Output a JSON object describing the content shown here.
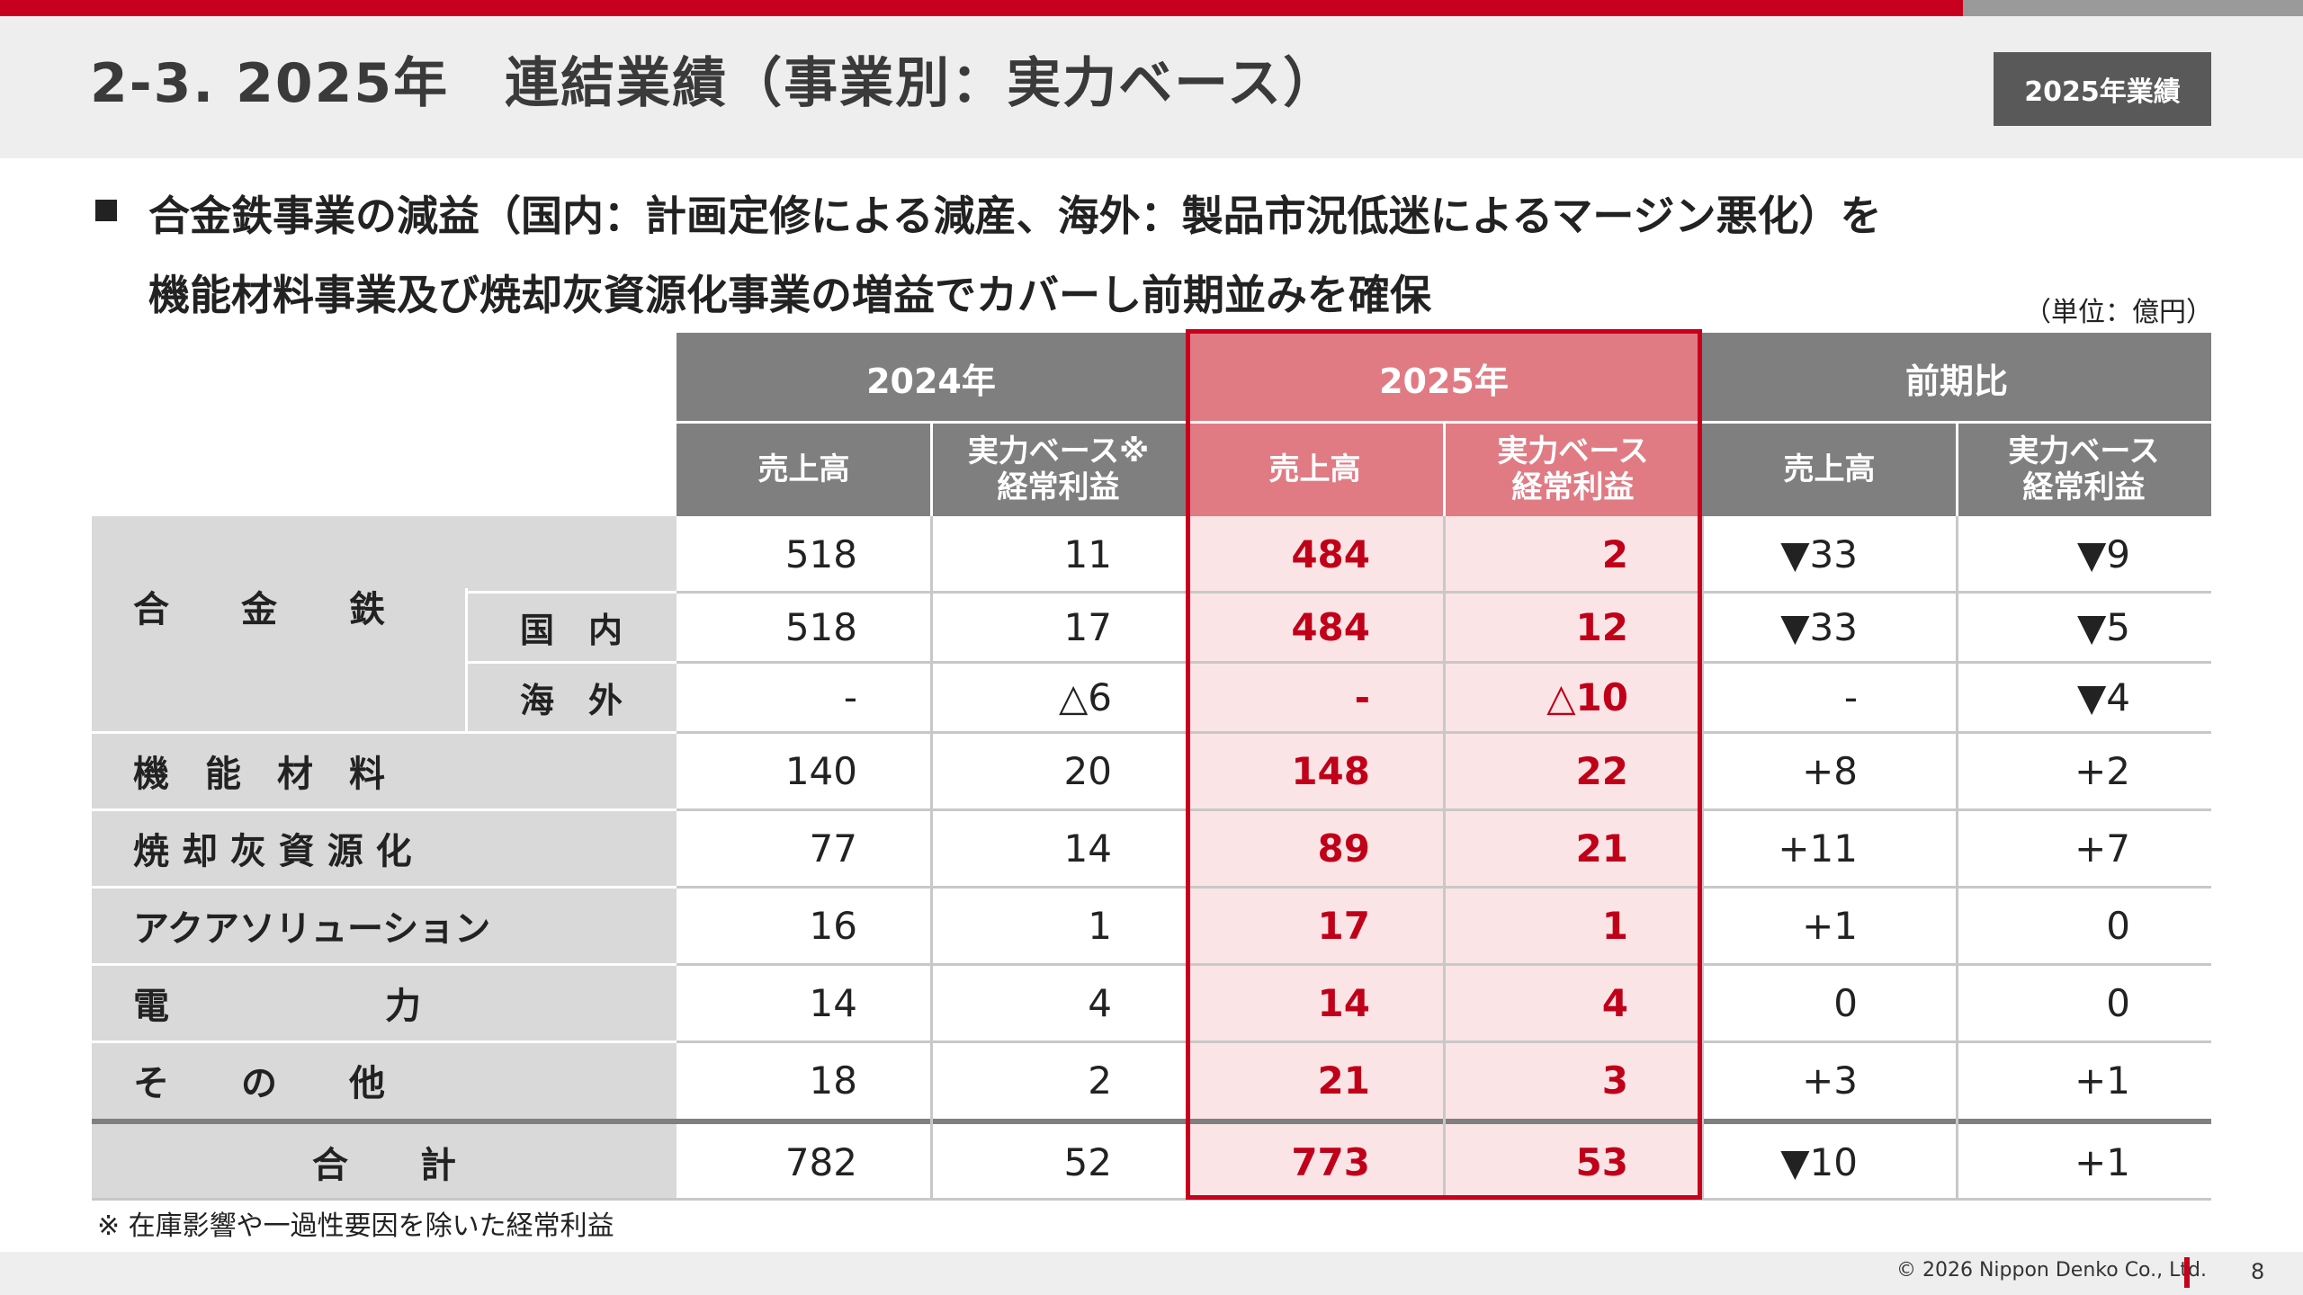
{
  "header": {
    "title": "2-3. 2025年　連結業績（事業別：実力ベース）",
    "badge": "2025年業績"
  },
  "headline": {
    "line1": "合金鉄事業の減益（国内：計画定修による減産、海外：製品市況低迷によるマージン悪化）を",
    "line2": "機能材料事業及び焼却灰資源化事業の増益でカバーし前期並みを確保"
  },
  "unit": "（単位：億円）",
  "table": {
    "groups": [
      "2024年",
      "2025年",
      "前期比"
    ],
    "subheaders": {
      "sales": "売上高",
      "profit_2024_line1": "実力ベース※",
      "profit_line1": "実力ベース",
      "profit_line2": "経常利益"
    },
    "rows": [
      {
        "label": "",
        "cells": [
          "518",
          "11",
          "484",
          "2",
          "▼33",
          "▼9"
        ]
      },
      {
        "label": "国　内",
        "cells": [
          "518",
          "17",
          "484",
          "12",
          "▼33",
          "▼5"
        ]
      },
      {
        "label": "海　外",
        "cells": [
          "-",
          "△6",
          "-",
          "△10",
          "-",
          "▼4"
        ]
      },
      {
        "label": "機　能　材　料",
        "cells": [
          "140",
          "20",
          "148",
          "22",
          "+8",
          "+2"
        ]
      },
      {
        "label": "焼 却 灰 資 源 化",
        "cells": [
          "77",
          "14",
          "89",
          "21",
          "+11",
          "+7"
        ]
      },
      {
        "label": "アクアソリューション",
        "cells": [
          "16",
          "1",
          "17",
          "1",
          "+1",
          "0"
        ]
      },
      {
        "label": "電　　　　　　力",
        "cells": [
          "14",
          "4",
          "14",
          "4",
          "0",
          "0"
        ]
      },
      {
        "label": "そ　　の　　他",
        "cells": [
          "18",
          "2",
          "21",
          "3",
          "+3",
          "+1"
        ]
      },
      {
        "label": "合　　計",
        "cells": [
          "782",
          "52",
          "773",
          "53",
          "▼10",
          "+1"
        ]
      }
    ],
    "group_label": "合　　金　　鉄"
  },
  "footnote": "※ 在庫影響や一過性要因を除いた経常利益",
  "footer": {
    "copyright": "© 2026 Nippon Denko Co., Ltd.",
    "page": "8"
  },
  "colors": {
    "brand_red": "#c8001e",
    "header_gray": "#7f7f7f",
    "highlight_pink": "#e07b84",
    "highlight_cell": "#fbe4e6",
    "label_gray": "#d9d9d9"
  }
}
